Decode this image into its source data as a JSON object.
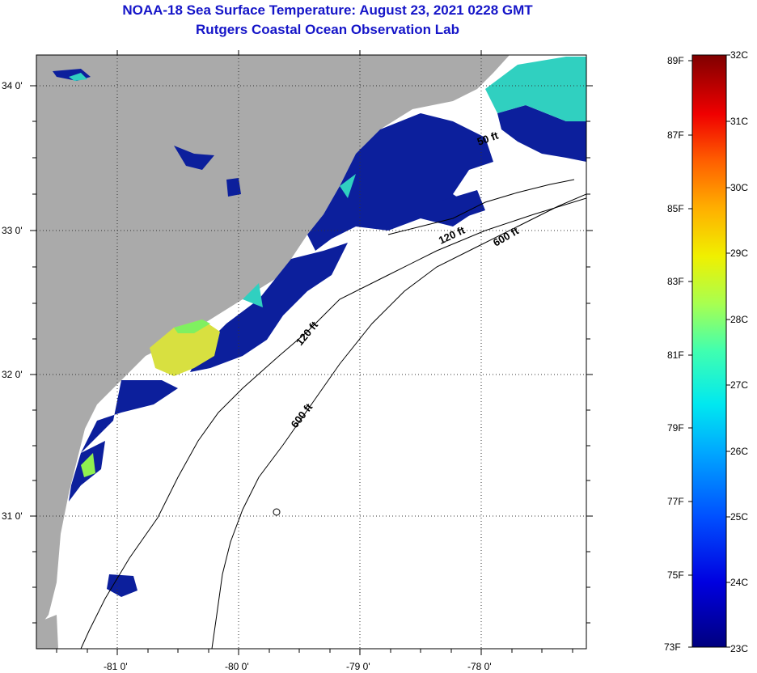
{
  "header": {
    "title_line1": "NOAA-18 Sea Surface Temperature:  August 23, 2021 0228 GMT",
    "title_line2": "Rutgers Coastal Ocean Observation Lab"
  },
  "map": {
    "lat_labels": [
      "34 0'",
      "33 0'",
      "32 0'",
      "31 0'"
    ],
    "lon_labels": [
      "-81 0'",
      "-80 0'",
      "-79 0'",
      "-78 0'"
    ],
    "contour_labels": [
      "50 ft",
      "120 ft",
      "600 ft",
      "120 ft",
      "600 ft"
    ],
    "colors": {
      "land": "#aaaaaa",
      "cloud": "#ffffff",
      "sst_cold": "#0c1f9c",
      "sst_warm": "#e8e030"
    }
  },
  "colorbar": {
    "celsius_labels": [
      "32C",
      "31C",
      "30C",
      "29C",
      "28C",
      "27C",
      "26C",
      "25C",
      "24C",
      "23C"
    ],
    "fahrenheit_labels": [
      "89F",
      "87F",
      "85F",
      "83F",
      "81F",
      "79F",
      "77F",
      "75F",
      "73F"
    ],
    "range_c": [
      23,
      32
    ]
  }
}
